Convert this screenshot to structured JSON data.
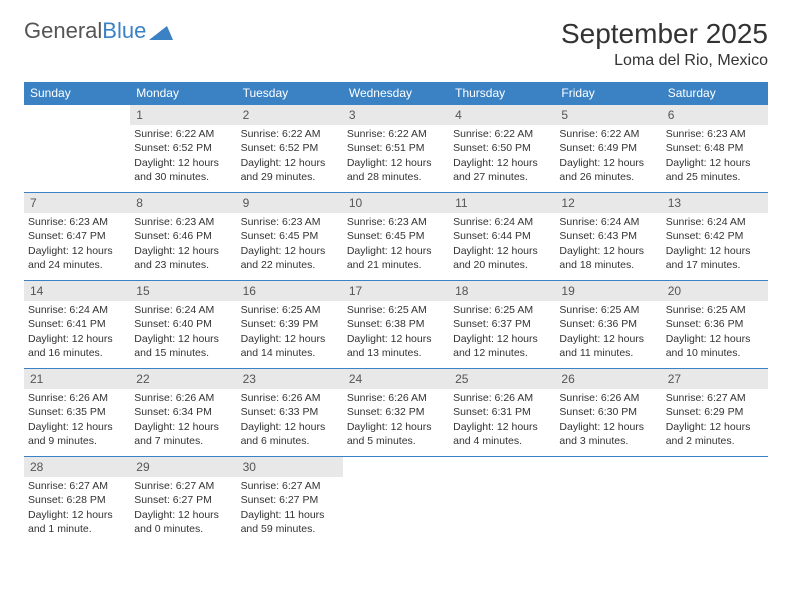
{
  "brand": {
    "part1": "General",
    "part2": "Blue"
  },
  "title": "September 2025",
  "location": "Loma del Rio, Mexico",
  "colors": {
    "header_bg": "#3b82c4",
    "header_text": "#ffffff",
    "daynum_bg": "#e8e8e8",
    "border": "#3b82c4",
    "text": "#333333"
  },
  "weekdays": [
    "Sunday",
    "Monday",
    "Tuesday",
    "Wednesday",
    "Thursday",
    "Friday",
    "Saturday"
  ],
  "weeks": [
    [
      {
        "n": "",
        "sr": "",
        "ss": "",
        "dl": ""
      },
      {
        "n": "1",
        "sr": "Sunrise: 6:22 AM",
        "ss": "Sunset: 6:52 PM",
        "dl": "Daylight: 12 hours and 30 minutes."
      },
      {
        "n": "2",
        "sr": "Sunrise: 6:22 AM",
        "ss": "Sunset: 6:52 PM",
        "dl": "Daylight: 12 hours and 29 minutes."
      },
      {
        "n": "3",
        "sr": "Sunrise: 6:22 AM",
        "ss": "Sunset: 6:51 PM",
        "dl": "Daylight: 12 hours and 28 minutes."
      },
      {
        "n": "4",
        "sr": "Sunrise: 6:22 AM",
        "ss": "Sunset: 6:50 PM",
        "dl": "Daylight: 12 hours and 27 minutes."
      },
      {
        "n": "5",
        "sr": "Sunrise: 6:22 AM",
        "ss": "Sunset: 6:49 PM",
        "dl": "Daylight: 12 hours and 26 minutes."
      },
      {
        "n": "6",
        "sr": "Sunrise: 6:23 AM",
        "ss": "Sunset: 6:48 PM",
        "dl": "Daylight: 12 hours and 25 minutes."
      }
    ],
    [
      {
        "n": "7",
        "sr": "Sunrise: 6:23 AM",
        "ss": "Sunset: 6:47 PM",
        "dl": "Daylight: 12 hours and 24 minutes."
      },
      {
        "n": "8",
        "sr": "Sunrise: 6:23 AM",
        "ss": "Sunset: 6:46 PM",
        "dl": "Daylight: 12 hours and 23 minutes."
      },
      {
        "n": "9",
        "sr": "Sunrise: 6:23 AM",
        "ss": "Sunset: 6:45 PM",
        "dl": "Daylight: 12 hours and 22 minutes."
      },
      {
        "n": "10",
        "sr": "Sunrise: 6:23 AM",
        "ss": "Sunset: 6:45 PM",
        "dl": "Daylight: 12 hours and 21 minutes."
      },
      {
        "n": "11",
        "sr": "Sunrise: 6:24 AM",
        "ss": "Sunset: 6:44 PM",
        "dl": "Daylight: 12 hours and 20 minutes."
      },
      {
        "n": "12",
        "sr": "Sunrise: 6:24 AM",
        "ss": "Sunset: 6:43 PM",
        "dl": "Daylight: 12 hours and 18 minutes."
      },
      {
        "n": "13",
        "sr": "Sunrise: 6:24 AM",
        "ss": "Sunset: 6:42 PM",
        "dl": "Daylight: 12 hours and 17 minutes."
      }
    ],
    [
      {
        "n": "14",
        "sr": "Sunrise: 6:24 AM",
        "ss": "Sunset: 6:41 PM",
        "dl": "Daylight: 12 hours and 16 minutes."
      },
      {
        "n": "15",
        "sr": "Sunrise: 6:24 AM",
        "ss": "Sunset: 6:40 PM",
        "dl": "Daylight: 12 hours and 15 minutes."
      },
      {
        "n": "16",
        "sr": "Sunrise: 6:25 AM",
        "ss": "Sunset: 6:39 PM",
        "dl": "Daylight: 12 hours and 14 minutes."
      },
      {
        "n": "17",
        "sr": "Sunrise: 6:25 AM",
        "ss": "Sunset: 6:38 PM",
        "dl": "Daylight: 12 hours and 13 minutes."
      },
      {
        "n": "18",
        "sr": "Sunrise: 6:25 AM",
        "ss": "Sunset: 6:37 PM",
        "dl": "Daylight: 12 hours and 12 minutes."
      },
      {
        "n": "19",
        "sr": "Sunrise: 6:25 AM",
        "ss": "Sunset: 6:36 PM",
        "dl": "Daylight: 12 hours and 11 minutes."
      },
      {
        "n": "20",
        "sr": "Sunrise: 6:25 AM",
        "ss": "Sunset: 6:36 PM",
        "dl": "Daylight: 12 hours and 10 minutes."
      }
    ],
    [
      {
        "n": "21",
        "sr": "Sunrise: 6:26 AM",
        "ss": "Sunset: 6:35 PM",
        "dl": "Daylight: 12 hours and 9 minutes."
      },
      {
        "n": "22",
        "sr": "Sunrise: 6:26 AM",
        "ss": "Sunset: 6:34 PM",
        "dl": "Daylight: 12 hours and 7 minutes."
      },
      {
        "n": "23",
        "sr": "Sunrise: 6:26 AM",
        "ss": "Sunset: 6:33 PM",
        "dl": "Daylight: 12 hours and 6 minutes."
      },
      {
        "n": "24",
        "sr": "Sunrise: 6:26 AM",
        "ss": "Sunset: 6:32 PM",
        "dl": "Daylight: 12 hours and 5 minutes."
      },
      {
        "n": "25",
        "sr": "Sunrise: 6:26 AM",
        "ss": "Sunset: 6:31 PM",
        "dl": "Daylight: 12 hours and 4 minutes."
      },
      {
        "n": "26",
        "sr": "Sunrise: 6:26 AM",
        "ss": "Sunset: 6:30 PM",
        "dl": "Daylight: 12 hours and 3 minutes."
      },
      {
        "n": "27",
        "sr": "Sunrise: 6:27 AM",
        "ss": "Sunset: 6:29 PM",
        "dl": "Daylight: 12 hours and 2 minutes."
      }
    ],
    [
      {
        "n": "28",
        "sr": "Sunrise: 6:27 AM",
        "ss": "Sunset: 6:28 PM",
        "dl": "Daylight: 12 hours and 1 minute."
      },
      {
        "n": "29",
        "sr": "Sunrise: 6:27 AM",
        "ss": "Sunset: 6:27 PM",
        "dl": "Daylight: 12 hours and 0 minutes."
      },
      {
        "n": "30",
        "sr": "Sunrise: 6:27 AM",
        "ss": "Sunset: 6:27 PM",
        "dl": "Daylight: 11 hours and 59 minutes."
      },
      {
        "n": "",
        "sr": "",
        "ss": "",
        "dl": ""
      },
      {
        "n": "",
        "sr": "",
        "ss": "",
        "dl": ""
      },
      {
        "n": "",
        "sr": "",
        "ss": "",
        "dl": ""
      },
      {
        "n": "",
        "sr": "",
        "ss": "",
        "dl": ""
      }
    ]
  ]
}
